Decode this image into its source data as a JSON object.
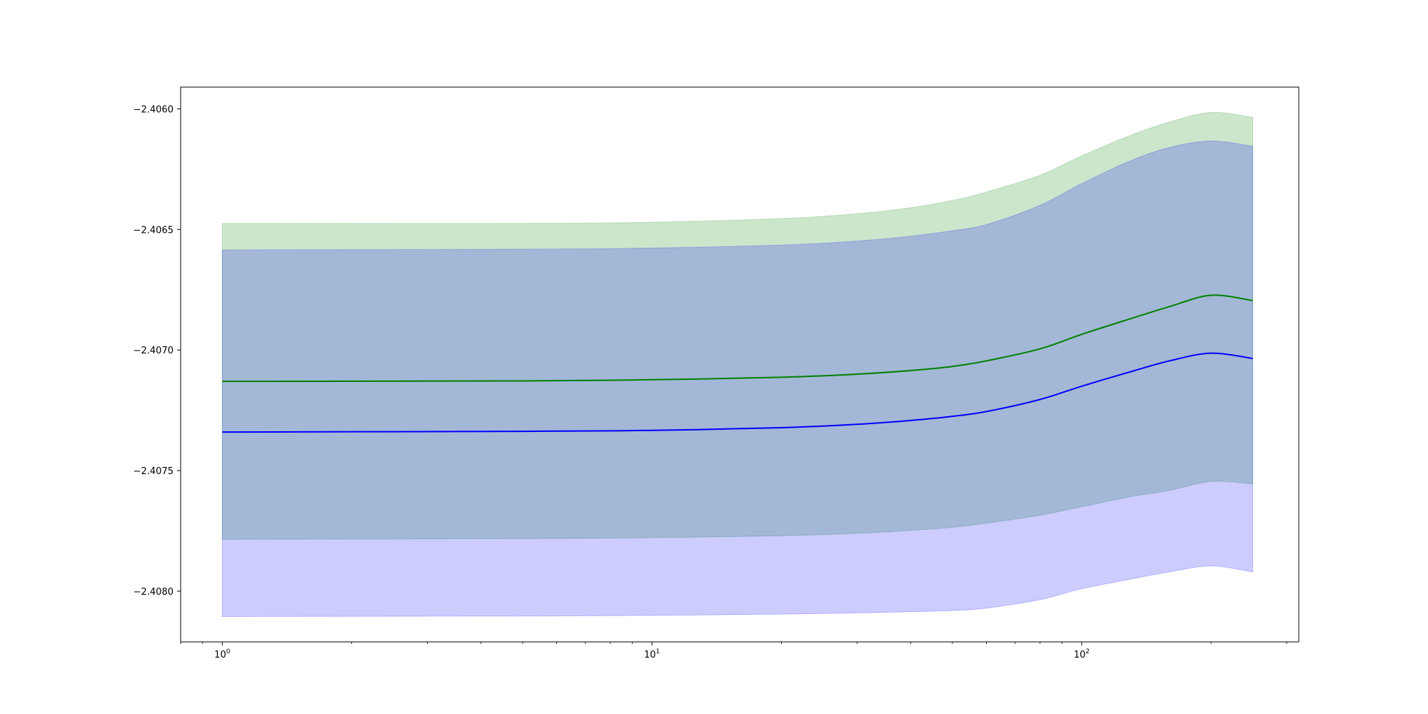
{
  "chart_data": {
    "type": "line",
    "title": "",
    "xlabel": "",
    "ylabel": "",
    "xscale": "log",
    "xlim": [
      0.8,
      320
    ],
    "ylim": [
      -2.40821,
      -2.40591
    ],
    "grid": false,
    "legend": "none",
    "x_ticks": [
      {
        "value": 1,
        "base": "10",
        "exp": "0"
      },
      {
        "value": 10,
        "base": "10",
        "exp": "1"
      },
      {
        "value": 100,
        "base": "10",
        "exp": "2"
      }
    ],
    "y_ticks": [
      {
        "value": -2.406,
        "label": "−2.4060"
      },
      {
        "value": -2.4065,
        "label": "−2.4065"
      },
      {
        "value": -2.407,
        "label": "−2.4070"
      },
      {
        "value": -2.4075,
        "label": "−2.4075"
      },
      {
        "value": -2.408,
        "label": "−2.4080"
      }
    ],
    "series": [
      {
        "color": "#008000",
        "band_color": "#008000",
        "x": [
          1,
          5,
          10,
          20,
          30,
          40,
          50,
          60,
          80,
          100,
          130,
          160,
          200,
          250
        ],
        "mean": [
          -2.40713,
          -2.407128,
          -2.407123,
          -2.407113,
          -2.4071,
          -2.407085,
          -2.407068,
          -2.407045,
          -2.406995,
          -2.406935,
          -2.40687,
          -2.40682,
          -2.406773,
          -2.406795
        ],
        "upper": [
          -2.406475,
          -2.406475,
          -2.40647,
          -2.406455,
          -2.406435,
          -2.40641,
          -2.40638,
          -2.406345,
          -2.406275,
          -2.406195,
          -2.40611,
          -2.406055,
          -2.406015,
          -2.406035
        ],
        "lower": [
          -2.407785,
          -2.407782,
          -2.407778,
          -2.40777,
          -2.40776,
          -2.407748,
          -2.407735,
          -2.407718,
          -2.407685,
          -2.40765,
          -2.407608,
          -2.407582,
          -2.407545,
          -2.407555
        ]
      },
      {
        "color": "#0000ff",
        "band_color": "#0000ff",
        "x": [
          1,
          5,
          10,
          20,
          30,
          40,
          50,
          60,
          80,
          100,
          130,
          160,
          200,
          250
        ],
        "mean": [
          -2.40734,
          -2.407337,
          -2.407333,
          -2.407322,
          -2.407308,
          -2.407292,
          -2.407275,
          -2.407255,
          -2.407205,
          -2.40715,
          -2.40709,
          -2.407045,
          -2.407013,
          -2.407035
        ],
        "upper": [
          -2.406585,
          -2.406582,
          -2.406577,
          -2.406565,
          -2.406548,
          -2.406528,
          -2.406505,
          -2.40648,
          -2.4064,
          -2.40631,
          -2.406215,
          -2.40616,
          -2.406133,
          -2.406155
        ],
        "lower": [
          -2.408105,
          -2.408103,
          -2.4081,
          -2.408095,
          -2.40809,
          -2.408085,
          -2.40808,
          -2.40807,
          -2.408035,
          -2.40799,
          -2.40795,
          -2.40792,
          -2.407895,
          -2.40792
        ]
      }
    ]
  }
}
